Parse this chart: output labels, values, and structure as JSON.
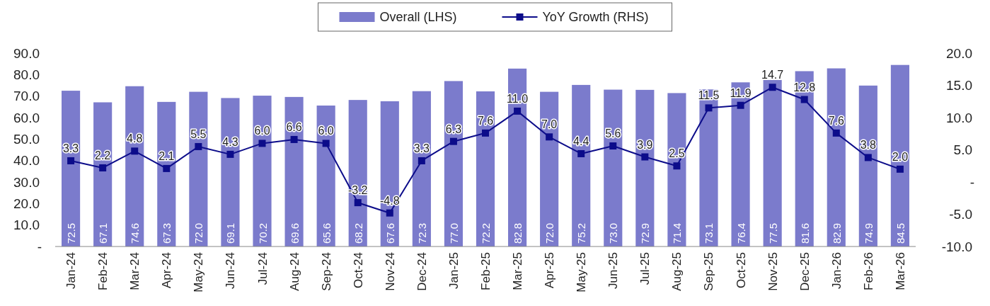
{
  "chart_data": {
    "type": "bar",
    "categories": [
      "Jan-24",
      "Feb-24",
      "Mar-24",
      "Apr-24",
      "May-24",
      "Jun-24",
      "Jul-24",
      "Aug-24",
      "Sep-24",
      "Oct-24",
      "Nov-24",
      "Dec-24",
      "Jan-25",
      "Feb-25",
      "Mar-25",
      "Apr-25",
      "May-25",
      "Jun-25",
      "Jul-25",
      "Aug-25",
      "Sep-25",
      "Oct-25",
      "Nov-25",
      "Dec-25",
      "Jan-26",
      "Feb-26",
      "Mar-26"
    ],
    "series": [
      {
        "name": "Overall (LHS)",
        "color": "#7b7bcc",
        "values": [
          72.5,
          67.1,
          74.6,
          67.3,
          72.0,
          69.1,
          70.2,
          69.6,
          65.6,
          68.2,
          67.6,
          72.3,
          77.0,
          72.2,
          82.8,
          72.0,
          75.2,
          73.0,
          72.9,
          71.4,
          73.1,
          76.4,
          77.5,
          81.6,
          82.9,
          74.9,
          84.5
        ],
        "value_labels": [
          "72.5",
          "67.1",
          "74.6",
          "67.3",
          "72.0",
          "69.1",
          "70.2",
          "69.6",
          "65.6",
          "68.2",
          "67.6",
          "72.3",
          "77.0",
          "72.2",
          "82.8",
          "72.0",
          "75.2",
          "73.0",
          "72.9",
          "71.4",
          "73.1",
          "76.4",
          "77.5",
          "81.6",
          "82.9",
          "74.9",
          "84.5"
        ]
      },
      {
        "name": "YoY Growth (RHS)",
        "type": "line",
        "axis": "y2",
        "color": "#0c0c8a",
        "values": [
          3.3,
          2.2,
          4.8,
          2.1,
          5.5,
          4.3,
          6.0,
          6.6,
          6.0,
          -3.2,
          -4.8,
          3.3,
          6.3,
          7.6,
          11.0,
          7.0,
          4.4,
          5.6,
          3.9,
          2.5,
          11.5,
          11.9,
          14.7,
          12.8,
          7.6,
          3.8,
          2.0
        ],
        "value_labels": [
          "3.3",
          "2.2",
          "4.8",
          "2.1",
          "5.5",
          "4.3",
          "6.0",
          "6.6",
          "6.0",
          "-3.2",
          "-4.8",
          "3.3",
          "6.3",
          "7.6",
          "11.0",
          "7.0",
          "4.4",
          "5.6",
          "3.9",
          "2.5",
          "11.5",
          "11.9",
          "14.7",
          "12.8",
          "7.6",
          "3.8",
          "2.0"
        ]
      }
    ],
    "ylim": [
      0,
      90
    ],
    "yticks": [
      {
        "value": 0,
        "label": "-"
      },
      {
        "value": 10,
        "label": "10.0"
      },
      {
        "value": 20,
        "label": "20.0"
      },
      {
        "value": 30,
        "label": "30.0"
      },
      {
        "value": 40,
        "label": "40.0"
      },
      {
        "value": 50,
        "label": "50.0"
      },
      {
        "value": 60,
        "label": "60.0"
      },
      {
        "value": 70,
        "label": "70.0"
      },
      {
        "value": 80,
        "label": "80.0"
      },
      {
        "value": 90,
        "label": "90.0"
      }
    ],
    "y2lim": [
      -10,
      20
    ],
    "y2ticks": [
      {
        "value": -10,
        "label": "-10.0"
      },
      {
        "value": -5,
        "label": "-5.0"
      },
      {
        "value": 0,
        "label": "-"
      },
      {
        "value": 5,
        "label": "5.0"
      },
      {
        "value": 10,
        "label": "10.0"
      },
      {
        "value": 15,
        "label": "15.0"
      },
      {
        "value": 20,
        "label": "20.0"
      }
    ],
    "grid": false,
    "legend": "top",
    "marker": "square",
    "line_style": "solid"
  }
}
